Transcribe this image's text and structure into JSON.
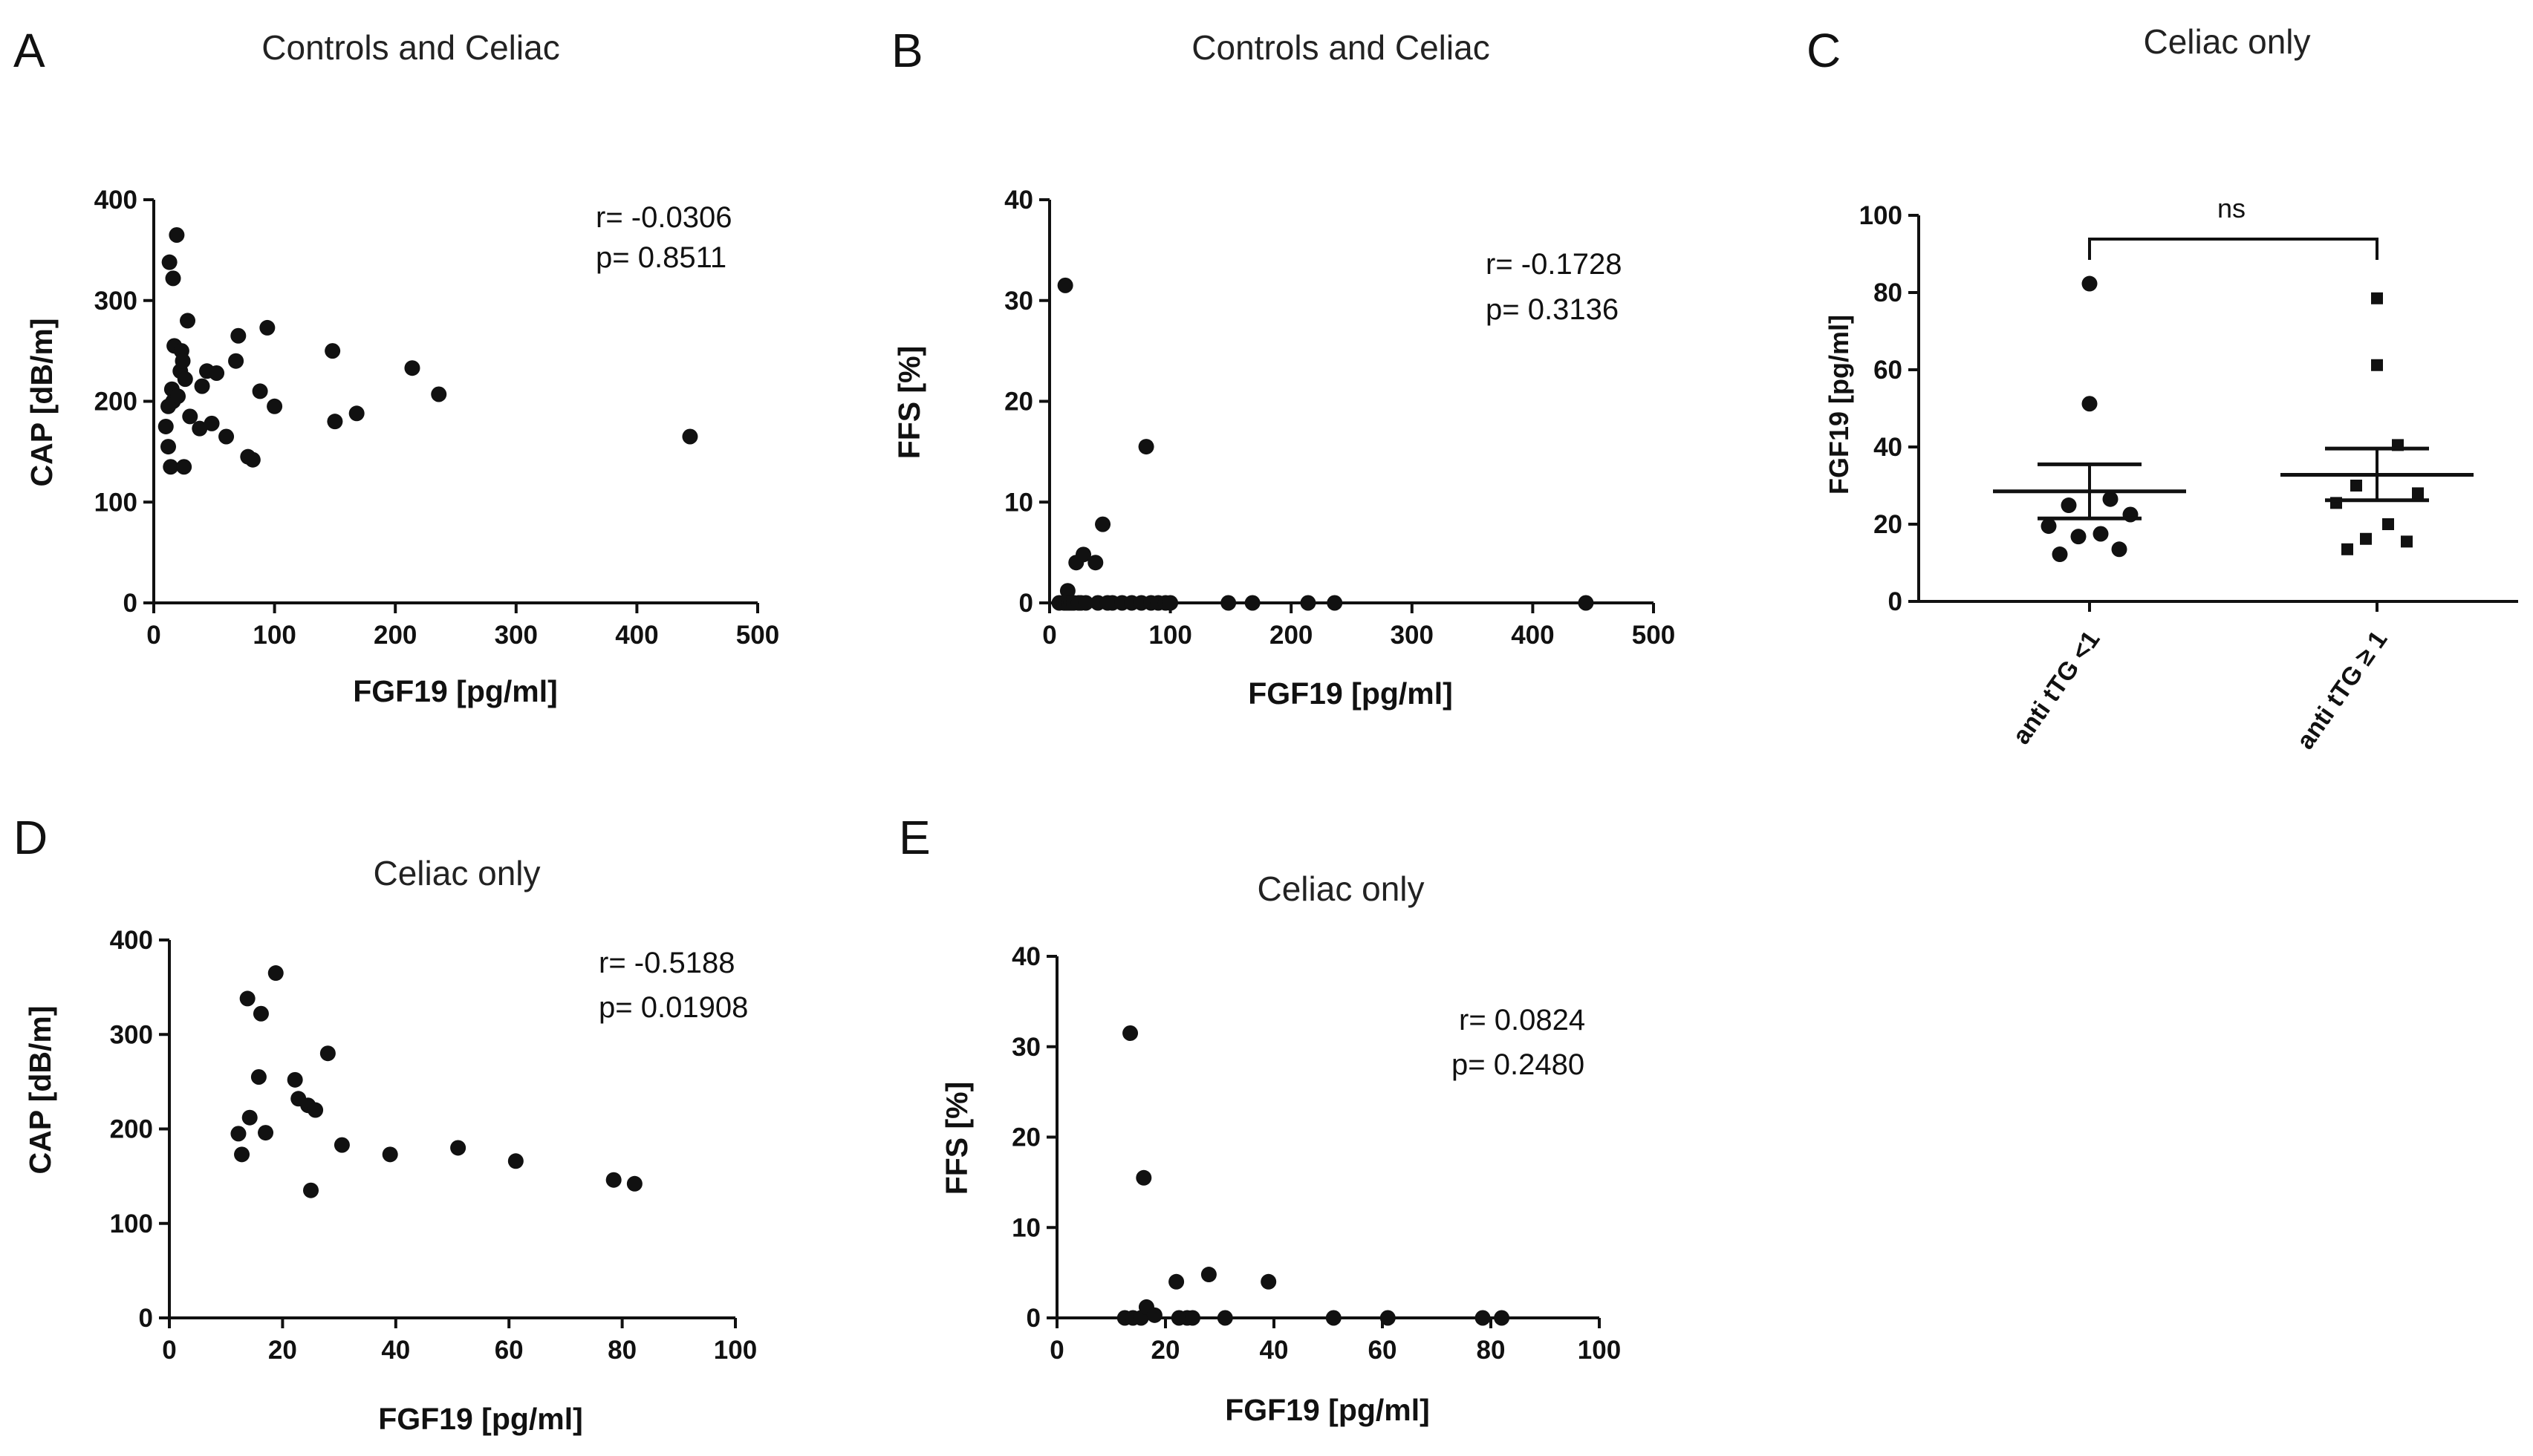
{
  "chart_data": [
    {
      "id": "A",
      "type": "scatter",
      "panel_label": "A",
      "title": "Controls and Celiac",
      "xlabel": "FGF19 [pg/ml]",
      "ylabel": "CAP [dB/m]",
      "xlim": [
        0,
        500
      ],
      "ylim": [
        0,
        400
      ],
      "xticks": [
        0,
        100,
        200,
        300,
        400,
        500
      ],
      "yticks": [
        0,
        100,
        200,
        300,
        400
      ],
      "annotations": [
        "r= -0.0306",
        "p= 0.8511"
      ],
      "points": [
        [
          10,
          175
        ],
        [
          12,
          155
        ],
        [
          12,
          195
        ],
        [
          13,
          338
        ],
        [
          14,
          135
        ],
        [
          15,
          212
        ],
        [
          16,
          322
        ],
        [
          16,
          200
        ],
        [
          17,
          255
        ],
        [
          19,
          365
        ],
        [
          20,
          205
        ],
        [
          22,
          230
        ],
        [
          23,
          250
        ],
        [
          24,
          240
        ],
        [
          25,
          135
        ],
        [
          26,
          222
        ],
        [
          28,
          280
        ],
        [
          30,
          185
        ],
        [
          38,
          173
        ],
        [
          40,
          215
        ],
        [
          44,
          230
        ],
        [
          48,
          178
        ],
        [
          52,
          228
        ],
        [
          60,
          165
        ],
        [
          68,
          240
        ],
        [
          70,
          265
        ],
        [
          78,
          145
        ],
        [
          82,
          142
        ],
        [
          88,
          210
        ],
        [
          94,
          273
        ],
        [
          100,
          195
        ],
        [
          148,
          250
        ],
        [
          150,
          180
        ],
        [
          168,
          188
        ],
        [
          214,
          233
        ],
        [
          236,
          207
        ],
        [
          444,
          165
        ]
      ]
    },
    {
      "id": "B",
      "type": "scatter",
      "panel_label": "B",
      "title": "Controls and Celiac",
      "xlabel": "FGF19 [pg/ml]",
      "ylabel": "FFS [%]",
      "xlim": [
        0,
        500
      ],
      "ylim": [
        0,
        40
      ],
      "xticks": [
        0,
        100,
        200,
        300,
        400,
        500
      ],
      "yticks": [
        0,
        10,
        20,
        30,
        40
      ],
      "annotations": [
        "r= -0.1728",
        "p= 0.3136"
      ],
      "points": [
        [
          8,
          0
        ],
        [
          12,
          0
        ],
        [
          13,
          31.5
        ],
        [
          14,
          0
        ],
        [
          15,
          1.2
        ],
        [
          16,
          0
        ],
        [
          18,
          0
        ],
        [
          20,
          0
        ],
        [
          22,
          4
        ],
        [
          24,
          0
        ],
        [
          26,
          0
        ],
        [
          28,
          4.8
        ],
        [
          30,
          0
        ],
        [
          38,
          4
        ],
        [
          40,
          0
        ],
        [
          44,
          7.8
        ],
        [
          48,
          0
        ],
        [
          52,
          0
        ],
        [
          60,
          0
        ],
        [
          68,
          0
        ],
        [
          76,
          0
        ],
        [
          80,
          15.5
        ],
        [
          84,
          0
        ],
        [
          90,
          0
        ],
        [
          96,
          0
        ],
        [
          100,
          0
        ],
        [
          148,
          0
        ],
        [
          168,
          0
        ],
        [
          214,
          0
        ],
        [
          236,
          0
        ],
        [
          444,
          0
        ]
      ]
    },
    {
      "id": "C",
      "type": "scatter",
      "panel_label": "C",
      "title": "Celiac only",
      "ylabel": "FGF19 [pg/ml]",
      "ylim": [
        0,
        100
      ],
      "yticks": [
        0,
        20,
        40,
        60,
        80,
        100
      ],
      "categories": [
        "anti tTG <1",
        "anti tTG ≥ 1"
      ],
      "significance": "ns",
      "series": [
        {
          "name": "anti tTG <1",
          "marker": "circle",
          "values": [
            12.2,
            13.5,
            16.8,
            17.5,
            19.5,
            22.5,
            24.9,
            26.5,
            51.2,
            82.3
          ],
          "mean": 28.5,
          "sem_low": 21.5,
          "sem_high": 35.5
        },
        {
          "name": "anti tTG ≥ 1",
          "marker": "square",
          "values": [
            13.5,
            15.5,
            16.2,
            20,
            25.5,
            28,
            30,
            40.5,
            61.2,
            78.5
          ],
          "mean": 32.8,
          "sem_low": 26.2,
          "sem_high": 39.6
        }
      ]
    },
    {
      "id": "D",
      "type": "scatter",
      "panel_label": "D",
      "title": "Celiac only",
      "xlabel": "FGF19 [pg/ml]",
      "ylabel": "CAP [dB/m]",
      "xlim": [
        0,
        100
      ],
      "ylim": [
        0,
        400
      ],
      "xticks": [
        0,
        20,
        40,
        60,
        80,
        100
      ],
      "yticks": [
        0,
        100,
        200,
        300,
        400
      ],
      "annotations": [
        "r= -0.5188",
        "p= 0.01908"
      ],
      "points": [
        [
          12.2,
          195
        ],
        [
          12.8,
          173
        ],
        [
          13.8,
          338
        ],
        [
          14.2,
          212
        ],
        [
          15.8,
          255
        ],
        [
          16.2,
          322
        ],
        [
          17,
          196
        ],
        [
          18.8,
          365
        ],
        [
          22.2,
          252
        ],
        [
          22.8,
          232
        ],
        [
          24.5,
          225
        ],
        [
          25,
          135
        ],
        [
          25.8,
          220
        ],
        [
          28,
          280
        ],
        [
          30.5,
          183
        ],
        [
          39,
          173
        ],
        [
          51,
          180
        ],
        [
          61.2,
          166
        ],
        [
          78.5,
          146
        ],
        [
          82.2,
          142
        ]
      ]
    },
    {
      "id": "E",
      "type": "scatter",
      "panel_label": "E",
      "title": "Celiac only",
      "xlabel": "FGF19 [pg/ml]",
      "ylabel": "FFS [%]",
      "xlim": [
        0,
        100
      ],
      "ylim": [
        0,
        40
      ],
      "xticks": [
        0,
        20,
        40,
        60,
        80,
        100
      ],
      "yticks": [
        0,
        10,
        20,
        30,
        40
      ],
      "annotations": [
        "r= 0.0824",
        "p= 0.2480"
      ],
      "points": [
        [
          12.5,
          0
        ],
        [
          13.5,
          31.5
        ],
        [
          14,
          0
        ],
        [
          15.5,
          0
        ],
        [
          16,
          15.5
        ],
        [
          16.5,
          1.2
        ],
        [
          18,
          0.3
        ],
        [
          22,
          4
        ],
        [
          22.5,
          0
        ],
        [
          24,
          0
        ],
        [
          25,
          0
        ],
        [
          28,
          4.8
        ],
        [
          31,
          0
        ],
        [
          39,
          4
        ],
        [
          51,
          0
        ],
        [
          61,
          0
        ],
        [
          78.5,
          0
        ],
        [
          82,
          0
        ]
      ]
    }
  ]
}
